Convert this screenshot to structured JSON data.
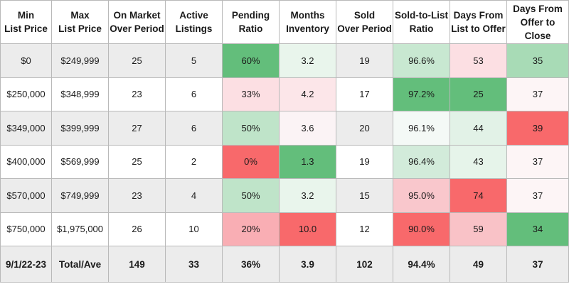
{
  "headers": [
    [
      "Min",
      "List Price"
    ],
    [
      "Max",
      "List Price"
    ],
    [
      "On Market",
      "Over Period"
    ],
    [
      "Active",
      "Listings"
    ],
    [
      "Pending",
      "Ratio"
    ],
    [
      "Months",
      "Inventory"
    ],
    [
      "Sold",
      "Over Period"
    ],
    [
      "Sold-to-List",
      "Ratio"
    ],
    [
      "Days From",
      "List to Offer"
    ],
    [
      "Days From",
      "Offer to Close"
    ]
  ],
  "rows": [
    [
      "$0",
      "$249,999",
      "25",
      "5",
      "60%",
      "3.2",
      "19",
      "96.6%",
      "53",
      "35"
    ],
    [
      "$250,000",
      "$348,999",
      "23",
      "6",
      "33%",
      "4.2",
      "17",
      "97.2%",
      "25",
      "37"
    ],
    [
      "$349,000",
      "$399,999",
      "27",
      "6",
      "50%",
      "3.6",
      "20",
      "96.1%",
      "44",
      "39"
    ],
    [
      "$400,000",
      "$569,999",
      "25",
      "2",
      "0%",
      "1.3",
      "19",
      "96.4%",
      "43",
      "37"
    ],
    [
      "$570,000",
      "$749,999",
      "23",
      "4",
      "50%",
      "3.2",
      "15",
      "95.0%",
      "74",
      "37"
    ],
    [
      "$750,000",
      "$1,975,000",
      "26",
      "10",
      "20%",
      "10.0",
      "12",
      "90.0%",
      "59",
      "34"
    ]
  ],
  "cell_colors": [
    [
      null,
      null,
      null,
      null,
      "#63be7b",
      "#e9f5ec",
      null,
      "#c8e8d1",
      "#fcdfe3",
      "#a8dbb6"
    ],
    [
      null,
      null,
      null,
      null,
      "#fcdfe3",
      "#fce6e9",
      null,
      "#63be7b",
      "#63be7b",
      "#fdf5f6"
    ],
    [
      null,
      null,
      null,
      null,
      "#bfe4c9",
      "#fbf3f5",
      null,
      "#f4f9f6",
      "#e2f2e7",
      "#f8696b"
    ],
    [
      null,
      null,
      null,
      null,
      "#f8696b",
      "#63be7b",
      null,
      "#d2ebda",
      "#e6f4ea",
      "#fdf5f6"
    ],
    [
      null,
      null,
      null,
      null,
      "#bfe4c9",
      "#e9f5ec",
      null,
      "#f9c7cc",
      "#f8696b",
      "#fdf5f6"
    ],
    [
      null,
      null,
      null,
      null,
      "#f9aeb4",
      "#f8696b",
      null,
      "#f8696b",
      "#f9c2c7",
      "#63be7b"
    ]
  ],
  "totals": [
    "9/1/22-23",
    "Total/Ave",
    "149",
    "33",
    "36%",
    "3.9",
    "102",
    "94.4%",
    "49",
    "37"
  ]
}
